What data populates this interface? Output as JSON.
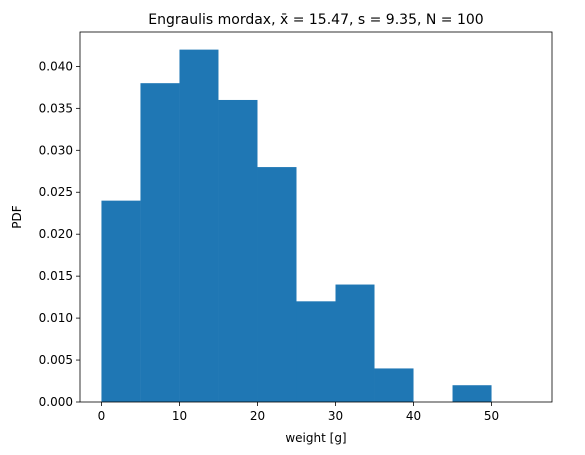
{
  "chart_data": {
    "type": "bar",
    "title": "Engraulis mordax, x̄ = 15.47, s = 9.35, N = 100",
    "xlabel": "weight [g]",
    "ylabel": "PDF",
    "xlim": [
      -2.75,
      57.75
    ],
    "ylim": [
      0,
      0.0441
    ],
    "xticks": [
      0,
      10,
      20,
      30,
      40,
      50
    ],
    "yticks": [
      0.0,
      0.005,
      0.01,
      0.015,
      0.02,
      0.025,
      0.03,
      0.035,
      0.04
    ],
    "ytick_labels": [
      "0.000",
      "0.005",
      "0.010",
      "0.015",
      "0.020",
      "0.025",
      "0.030",
      "0.035",
      "0.040"
    ],
    "bin_edges": [
      0,
      5,
      10,
      15,
      20,
      25,
      30,
      35,
      40,
      45,
      50,
      55
    ],
    "values": [
      0.024,
      0.038,
      0.042,
      0.036,
      0.028,
      0.012,
      0.014,
      0.004,
      0.0,
      0.002,
      0.0
    ],
    "bar_color": "#1f77b4",
    "grid": false,
    "legend": "none"
  }
}
